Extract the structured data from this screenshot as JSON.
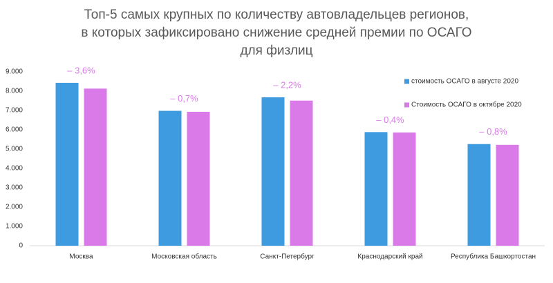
{
  "chart_data": {
    "type": "bar",
    "title": [
      "Топ-5 самых крупных по количеству автовладельцев регионов,",
      "в которых зафиксировано снижение средней премии по ОСАГО",
      "для физлиц"
    ],
    "categories": [
      "Москва",
      "Московская область",
      "Санкт-Петербург",
      "Краснодарский край",
      "Республика Башкортостан"
    ],
    "series": [
      {
        "name": "стоимость ОСАГО в августе 2020",
        "color": "#3f9be0",
        "values": [
          8430,
          6980,
          7680,
          5880,
          5260
        ]
      },
      {
        "name": "Стоимость ОСАГО в октябре 2020",
        "color": "#d97ae8",
        "values": [
          8130,
          6930,
          7510,
          5860,
          5220
        ]
      }
    ],
    "annotations": [
      "– 3,6%",
      "– 0,7%",
      "– 2,2%",
      "– 0,4%",
      "– 0,8%"
    ],
    "annotation_color": "#d97ae8",
    "ylim": [
      0,
      9000
    ],
    "yticks": [
      0,
      {
        "value": 1000,
        "label": "1.000"
      },
      {
        "value": 2000,
        "label": "2.000"
      },
      {
        "value": 3000,
        "label": "3.000"
      },
      {
        "value": 4000,
        "label": "4.000"
      },
      {
        "value": 5000,
        "label": "5.000"
      },
      {
        "value": 6000,
        "label": "6.000"
      },
      {
        "value": 7000,
        "label": "7.000"
      },
      {
        "value": 8000,
        "label": "8.000"
      },
      {
        "value": 9000,
        "label": "9.000"
      }
    ],
    "grid": false,
    "legend": "upper right"
  }
}
